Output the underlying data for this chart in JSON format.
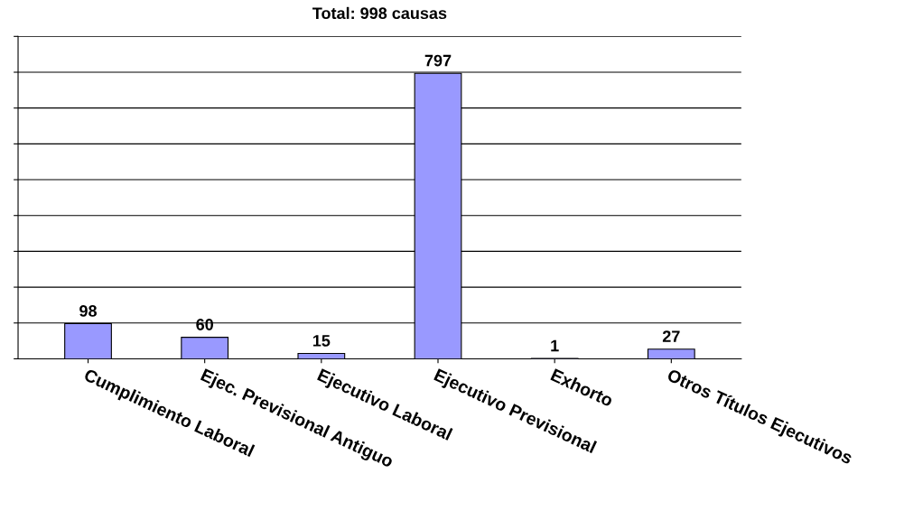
{
  "chart_data": {
    "type": "bar",
    "title": "Total: 998 causas",
    "categories": [
      "Cumplimiento Laboral",
      "Ejec. Previsional Antiguo",
      "Ejecutivo Laboral",
      "Ejecutivo Previsional",
      "Exhorto",
      "Otros Títulos Ejecutivos"
    ],
    "values": [
      98,
      60,
      15,
      797,
      1,
      27
    ],
    "color": "#9999ff",
    "ylim": [
      0,
      900
    ],
    "yticks": [
      {
        "value": 0,
        "label": null
      },
      {
        "value": 100,
        "label": null
      },
      {
        "value": 200,
        "label": null
      },
      {
        "value": 300,
        "label": null
      },
      {
        "value": 400,
        "label": null
      },
      {
        "value": 500,
        "label": null
      },
      {
        "value": 600,
        "label": null
      },
      {
        "value": 700,
        "label": null
      },
      {
        "value": 800,
        "label": null
      },
      {
        "value": 900,
        "label": null
      }
    ],
    "grid": "y",
    "data_labels": true,
    "tick_labels": "x",
    "legend": false
  }
}
